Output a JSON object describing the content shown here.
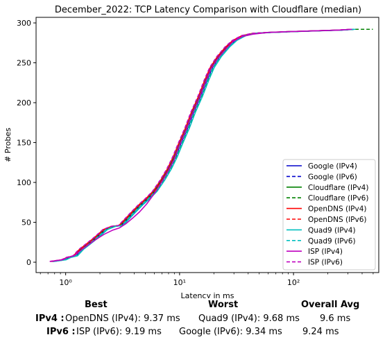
{
  "chart_data": {
    "type": "line",
    "title": "December_2022: TCP Latency Comparison with Cloudflare (median)",
    "xlabel": "Latency in ms",
    "ylabel": "# Probes",
    "xscale": "log",
    "xlim": [
      0.55,
      560
    ],
    "ylim": [
      -13,
      307
    ],
    "x_ticks": [
      1,
      10,
      100
    ],
    "x_tick_labels": [
      "10⁰",
      "10¹",
      "10²"
    ],
    "y_ticks": [
      0,
      50,
      100,
      150,
      200,
      250,
      300
    ],
    "y_tick_labels": [
      "0",
      "50",
      "100",
      "150",
      "200",
      "250",
      "300"
    ],
    "grid": false,
    "legend_position": "lower-right",
    "series": [
      {
        "name": "Google (IPv4)",
        "color": "#0000cc",
        "dash": "solid",
        "offset": 0.01,
        "x": [
          0.75,
          0.95,
          1.05,
          1.2,
          1.35,
          1.5,
          1.8,
          2.2,
          2.6,
          3.0,
          3.4,
          3.9,
          4.5,
          5.2,
          6.0,
          7.0,
          8.0,
          9.0,
          10.0,
          11.5,
          13.0,
          15.0,
          17.0,
          19.0,
          22.0,
          26.0,
          30.0,
          36.0,
          45.0,
          60.0,
          90.0,
          150.0,
          250.0,
          330.0
        ],
        "y": [
          1,
          3,
          6,
          8,
          16,
          21,
          30,
          41,
          45,
          46,
          54,
          63,
          72,
          80,
          89,
          103,
          117,
          132,
          148,
          168,
          188,
          208,
          228,
          244,
          258,
          270,
          278,
          284,
          287,
          288,
          289,
          290,
          291,
          292
        ]
      },
      {
        "name": "Google (IPv6)",
        "color": "#0000cc",
        "dash": "dashed",
        "offset": 0.02,
        "x": [
          0.75,
          0.95,
          1.05,
          1.2,
          1.35,
          1.5,
          1.8,
          2.2,
          2.6,
          3.0,
          3.4,
          3.9,
          4.5,
          5.2,
          6.0,
          7.0,
          8.0,
          9.0,
          10.0,
          11.5,
          13.0,
          15.0,
          17.0,
          19.0,
          22.0,
          26.0,
          30.0,
          36.0,
          45.0,
          60.0,
          90.0,
          150.0,
          250.0,
          330.0
        ],
        "y": [
          1,
          3,
          6,
          8,
          16,
          21,
          30,
          41,
          45,
          46,
          54,
          63,
          72,
          80,
          89,
          103,
          117,
          132,
          148,
          168,
          188,
          208,
          228,
          244,
          258,
          270,
          278,
          284,
          287,
          288,
          289,
          290,
          291,
          292
        ]
      },
      {
        "name": "Cloudflare (IPv4)",
        "color": "#008000",
        "dash": "solid",
        "offset": 0.0,
        "x": [
          0.75,
          0.95,
          1.05,
          1.2,
          1.35,
          1.5,
          1.8,
          2.2,
          2.6,
          3.0,
          3.4,
          3.9,
          4.5,
          5.2,
          6.0,
          7.0,
          8.0,
          9.0,
          10.0,
          11.5,
          13.0,
          15.0,
          17.0,
          19.0,
          22.0,
          26.0,
          30.0,
          36.0,
          45.0,
          60.0,
          90.0,
          150.0,
          250.0,
          330.0
        ],
        "y": [
          1,
          3,
          6,
          8,
          16,
          21,
          30,
          41,
          45,
          46,
          54,
          63,
          72,
          80,
          89,
          103,
          117,
          132,
          148,
          168,
          188,
          208,
          228,
          244,
          258,
          270,
          278,
          284,
          287,
          288,
          289,
          290,
          291,
          292
        ]
      },
      {
        "name": "Cloudflare (IPv6)",
        "color": "#008000",
        "dash": "dashed",
        "offset": 0.015,
        "x": [
          0.75,
          0.95,
          1.05,
          1.2,
          1.35,
          1.5,
          1.8,
          2.2,
          2.6,
          3.0,
          3.4,
          3.9,
          4.5,
          5.2,
          6.0,
          7.0,
          8.0,
          9.0,
          10.0,
          11.5,
          13.0,
          15.0,
          17.0,
          19.0,
          22.0,
          26.0,
          30.0,
          36.0,
          45.0,
          60.0,
          90.0,
          150.0,
          250.0,
          330.0,
          480.0
        ],
        "y": [
          1,
          3,
          6,
          8,
          16,
          21,
          30,
          41,
          45,
          46,
          54,
          63,
          72,
          80,
          89,
          103,
          117,
          132,
          148,
          168,
          188,
          208,
          228,
          244,
          258,
          270,
          278,
          284,
          287,
          288,
          289,
          290,
          291,
          292,
          292
        ]
      },
      {
        "name": "OpenDNS (IPv4)",
        "color": "#ff0000",
        "dash": "solid",
        "offset": -0.01,
        "x": [
          0.75,
          0.95,
          1.05,
          1.2,
          1.35,
          1.5,
          1.8,
          2.2,
          2.6,
          3.0,
          3.4,
          3.9,
          4.5,
          5.2,
          6.0,
          7.0,
          8.0,
          9.0,
          10.0,
          11.5,
          13.0,
          15.0,
          17.0,
          19.0,
          22.0,
          26.0,
          30.0,
          36.0,
          45.0,
          60.0,
          90.0,
          150.0,
          250.0,
          330.0
        ],
        "y": [
          1,
          3,
          6,
          8,
          16,
          21,
          30,
          41,
          45,
          46,
          54,
          63,
          72,
          80,
          89,
          103,
          117,
          132,
          148,
          168,
          188,
          208,
          228,
          244,
          258,
          270,
          278,
          284,
          287,
          288,
          289,
          290,
          291,
          292
        ]
      },
      {
        "name": "OpenDNS (IPv6)",
        "color": "#ff0000",
        "dash": "dashed",
        "offset": 0.005,
        "x": [
          0.75,
          0.95,
          1.05,
          1.2,
          1.35,
          1.5,
          1.8,
          2.2,
          2.6,
          3.0,
          3.4,
          3.9,
          4.5,
          5.2,
          6.0,
          7.0,
          8.0,
          9.0,
          10.0,
          11.5,
          13.0,
          15.0,
          17.0,
          19.0,
          22.0,
          26.0,
          30.0,
          36.0,
          45.0,
          60.0,
          90.0,
          150.0,
          250.0,
          330.0
        ],
        "y": [
          1,
          3,
          6,
          8,
          16,
          21,
          30,
          41,
          45,
          46,
          54,
          63,
          72,
          80,
          89,
          103,
          117,
          132,
          148,
          168,
          188,
          208,
          228,
          244,
          258,
          270,
          278,
          284,
          287,
          288,
          289,
          290,
          291,
          292
        ]
      },
      {
        "name": "Quad9 (IPv4)",
        "color": "#00bfbf",
        "dash": "solid",
        "offset": 0.025,
        "x": [
          0.75,
          0.95,
          1.05,
          1.2,
          1.35,
          1.5,
          1.8,
          2.2,
          2.6,
          3.0,
          3.4,
          3.9,
          4.5,
          5.2,
          6.0,
          7.0,
          8.0,
          9.0,
          10.0,
          11.5,
          13.0,
          15.0,
          17.0,
          19.0,
          22.0,
          26.0,
          30.0,
          36.0,
          45.0,
          60.0,
          90.0,
          150.0,
          250.0,
          330.0
        ],
        "y": [
          1,
          3,
          6,
          8,
          16,
          21,
          30,
          41,
          45,
          46,
          54,
          63,
          72,
          80,
          89,
          103,
          117,
          132,
          148,
          168,
          188,
          208,
          228,
          244,
          258,
          270,
          278,
          284,
          287,
          288,
          289,
          290,
          291,
          292
        ]
      },
      {
        "name": "Quad9 (IPv6)",
        "color": "#00bfbf",
        "dash": "dashed",
        "offset": 0.012,
        "x": [
          0.75,
          0.95,
          1.05,
          1.2,
          1.35,
          1.5,
          1.8,
          2.2,
          2.6,
          3.0,
          3.4,
          3.9,
          4.5,
          5.2,
          6.0,
          7.0,
          8.0,
          9.0,
          10.0,
          11.5,
          13.0,
          15.0,
          17.0,
          19.0,
          22.0,
          26.0,
          30.0,
          36.0,
          45.0,
          60.0,
          90.0,
          150.0,
          250.0,
          330.0
        ],
        "y": [
          1,
          3,
          6,
          8,
          16,
          21,
          30,
          41,
          45,
          46,
          54,
          63,
          72,
          80,
          89,
          103,
          117,
          132,
          148,
          168,
          188,
          208,
          228,
          244,
          258,
          270,
          278,
          284,
          287,
          288,
          289,
          290,
          291,
          292
        ]
      },
      {
        "name": "ISP (IPv4)",
        "color": "#bf00bf",
        "dash": "solid",
        "offset": -0.005,
        "x": [
          0.75,
          0.95,
          1.05,
          1.2,
          1.35,
          1.5,
          1.8,
          2.2,
          2.6,
          3.0,
          3.4,
          3.9,
          4.5,
          5.2,
          6.0,
          7.0,
          8.0,
          9.0,
          10.0,
          11.5,
          13.0,
          15.0,
          17.0,
          19.0,
          22.0,
          26.0,
          30.0,
          36.0,
          45.0,
          60.0,
          90.0,
          150.0,
          250.0,
          330.0
        ],
        "y": [
          1,
          3,
          6,
          8,
          14,
          19,
          27,
          35,
          40,
          43,
          48,
          55,
          63,
          73,
          85,
          100,
          114,
          128,
          145,
          165,
          185,
          205,
          225,
          242,
          256,
          268,
          277,
          283,
          286,
          288,
          289,
          290,
          291,
          292
        ]
      },
      {
        "name": "ISP (IPv6)",
        "color": "#bf00bf",
        "dash": "dashed",
        "offset": -0.015,
        "x": [
          0.75,
          0.95,
          1.05,
          1.2,
          1.35,
          1.5,
          1.8,
          2.2,
          2.6,
          3.0,
          3.4,
          3.9,
          4.5,
          5.2,
          6.0,
          7.0,
          8.0,
          9.0,
          10.0,
          11.5,
          13.0,
          15.0,
          17.0,
          19.0,
          22.0,
          26.0,
          30.0,
          36.0,
          45.0,
          60.0,
          90.0,
          150.0,
          250.0,
          330.0
        ],
        "y": [
          1,
          3,
          6,
          8,
          16,
          21,
          30,
          41,
          45,
          46,
          54,
          63,
          72,
          80,
          89,
          103,
          117,
          132,
          148,
          168,
          188,
          208,
          228,
          244,
          258,
          270,
          278,
          284,
          287,
          288,
          289,
          290,
          291,
          292
        ]
      }
    ]
  },
  "stats": {
    "headers": {
      "best": "Best",
      "worst": "Worst",
      "avg": "Overall Avg"
    },
    "rows": [
      {
        "label": "IPv4 :",
        "best": "OpenDNS (IPv4): 9.37 ms",
        "worst": "Quad9 (IPv4): 9.68 ms",
        "avg": "9.6 ms"
      },
      {
        "label": "IPv6 :",
        "best": "ISP (IPv6): 9.19 ms",
        "worst": "Google (IPv6): 9.34 ms",
        "avg": "9.24 ms"
      }
    ]
  }
}
